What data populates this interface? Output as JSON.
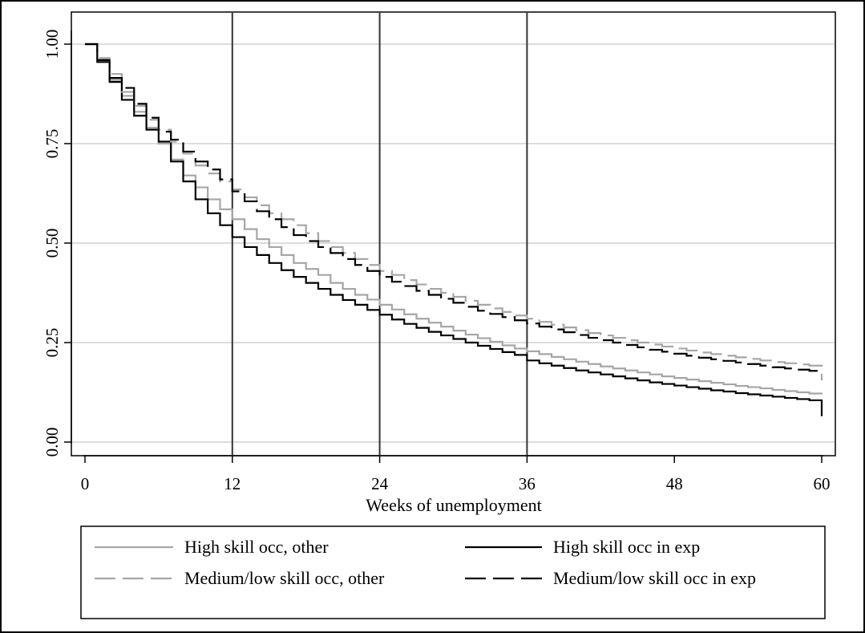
{
  "chart_data": {
    "type": "line",
    "subtype": "step",
    "xlabel": "Weeks of unemployment",
    "ylabel": "",
    "xlim": [
      0,
      60
    ],
    "ylim": [
      0,
      1
    ],
    "x_ticks": [
      0,
      12,
      24,
      36,
      48,
      60
    ],
    "x_tick_labels": [
      "0",
      "12",
      "24",
      "36",
      "48",
      "60"
    ],
    "y_ticks": [
      0,
      0.25,
      0.5,
      0.75,
      1.0
    ],
    "y_tick_labels": [
      "0.00",
      "0.25",
      "0.50",
      "0.75",
      "1.00"
    ],
    "grid": "horizontal",
    "reference_lines_x": [
      12,
      24,
      36
    ],
    "legend_position": "bottom",
    "series": [
      {
        "name": "High skill occ, other",
        "color": "#a6a6a6",
        "dash": "solid",
        "x": [
          0,
          1,
          2,
          3,
          4,
          5,
          6,
          7,
          8,
          9,
          10,
          11,
          12,
          13,
          14,
          15,
          16,
          17,
          18,
          19,
          20,
          21,
          22,
          23,
          24,
          25,
          26,
          27,
          28,
          29,
          30,
          31,
          32,
          33,
          34,
          35,
          36,
          37,
          38,
          39,
          40,
          41,
          42,
          43,
          44,
          45,
          46,
          47,
          48,
          49,
          50,
          51,
          52,
          53,
          54,
          55,
          56,
          57,
          58,
          59,
          60
        ],
        "y": [
          1.0,
          0.96,
          0.91,
          0.87,
          0.83,
          0.79,
          0.75,
          0.71,
          0.67,
          0.64,
          0.61,
          0.585,
          0.56,
          0.535,
          0.51,
          0.49,
          0.47,
          0.45,
          0.435,
          0.42,
          0.4,
          0.385,
          0.37,
          0.358,
          0.345,
          0.333,
          0.321,
          0.31,
          0.3,
          0.29,
          0.28,
          0.27,
          0.261,
          0.252,
          0.243,
          0.235,
          0.228,
          0.221,
          0.214,
          0.208,
          0.202,
          0.196,
          0.19,
          0.185,
          0.18,
          0.175,
          0.17,
          0.165,
          0.161,
          0.157,
          0.153,
          0.149,
          0.145,
          0.141,
          0.138,
          0.135,
          0.131,
          0.128,
          0.125,
          0.122,
          0.12
        ]
      },
      {
        "name": "High skill occ in exp",
        "color": "#000000",
        "dash": "solid",
        "x": [
          0,
          1,
          2,
          3,
          4,
          5,
          6,
          7,
          8,
          9,
          10,
          11,
          12,
          13,
          14,
          15,
          16,
          17,
          18,
          19,
          20,
          21,
          22,
          23,
          24,
          25,
          26,
          27,
          28,
          29,
          30,
          31,
          32,
          33,
          34,
          35,
          36,
          37,
          38,
          39,
          40,
          41,
          42,
          43,
          44,
          45,
          46,
          47,
          48,
          49,
          50,
          51,
          52,
          53,
          54,
          55,
          56,
          57,
          58,
          59,
          60
        ],
        "y": [
          1.0,
          0.955,
          0.905,
          0.86,
          0.82,
          0.785,
          0.755,
          0.705,
          0.655,
          0.61,
          0.575,
          0.545,
          0.515,
          0.49,
          0.47,
          0.45,
          0.432,
          0.415,
          0.4,
          0.385,
          0.37,
          0.357,
          0.345,
          0.332,
          0.32,
          0.308,
          0.297,
          0.287,
          0.277,
          0.268,
          0.259,
          0.25,
          0.242,
          0.234,
          0.226,
          0.219,
          0.205,
          0.198,
          0.192,
          0.186,
          0.18,
          0.175,
          0.17,
          0.165,
          0.16,
          0.155,
          0.15,
          0.146,
          0.142,
          0.138,
          0.134,
          0.13,
          0.127,
          0.123,
          0.12,
          0.117,
          0.114,
          0.111,
          0.108,
          0.105,
          0.065
        ]
      },
      {
        "name": "Medium/low skill occ, other",
        "color": "#a6a6a6",
        "dash": "dashed",
        "x": [
          0,
          1,
          2,
          3,
          4,
          5,
          6,
          7,
          8,
          9,
          10,
          11,
          12,
          13,
          14,
          15,
          16,
          17,
          18,
          19,
          20,
          21,
          22,
          23,
          24,
          25,
          26,
          27,
          28,
          29,
          30,
          31,
          32,
          33,
          34,
          35,
          36,
          37,
          38,
          39,
          40,
          41,
          42,
          43,
          44,
          45,
          46,
          47,
          48,
          49,
          50,
          51,
          52,
          53,
          54,
          55,
          56,
          57,
          58,
          59,
          60
        ],
        "y": [
          1.0,
          0.965,
          0.925,
          0.88,
          0.845,
          0.81,
          0.785,
          0.755,
          0.725,
          0.695,
          0.675,
          0.655,
          0.635,
          0.615,
          0.595,
          0.575,
          0.56,
          0.545,
          0.525,
          0.505,
          0.49,
          0.475,
          0.46,
          0.445,
          0.43,
          0.42,
          0.407,
          0.396,
          0.385,
          0.375,
          0.365,
          0.355,
          0.345,
          0.336,
          0.327,
          0.318,
          0.31,
          0.302,
          0.295,
          0.288,
          0.281,
          0.274,
          0.268,
          0.262,
          0.256,
          0.25,
          0.245,
          0.24,
          0.235,
          0.23,
          0.225,
          0.221,
          0.217,
          0.213,
          0.209,
          0.205,
          0.201,
          0.198,
          0.195,
          0.192,
          0.155
        ]
      },
      {
        "name": "Medium/low skill occ in exp",
        "color": "#000000",
        "dash": "dashed",
        "x": [
          0,
          1,
          2,
          3,
          4,
          5,
          6,
          7,
          8,
          9,
          10,
          11,
          12,
          13,
          14,
          15,
          16,
          17,
          18,
          19,
          20,
          21,
          22,
          23,
          24,
          25,
          26,
          27,
          28,
          29,
          30,
          31,
          32,
          33,
          34,
          35,
          36,
          37,
          38,
          39,
          40,
          41,
          42,
          43,
          44,
          45,
          46,
          47,
          48,
          49,
          50,
          51,
          52,
          53,
          54,
          55,
          56,
          57,
          58,
          59,
          60
        ],
        "y": [
          1.0,
          0.96,
          0.915,
          0.89,
          0.85,
          0.815,
          0.78,
          0.76,
          0.73,
          0.705,
          0.685,
          0.66,
          0.63,
          0.605,
          0.58,
          0.56,
          0.54,
          0.52,
          0.505,
          0.49,
          0.475,
          0.46,
          0.445,
          0.43,
          0.415,
          0.403,
          0.392,
          0.38,
          0.37,
          0.36,
          0.35,
          0.34,
          0.33,
          0.322,
          0.314,
          0.306,
          0.298,
          0.29,
          0.283,
          0.276,
          0.269,
          0.262,
          0.256,
          0.25,
          0.244,
          0.238,
          0.232,
          0.227,
          0.222,
          0.217,
          0.212,
          0.208,
          0.204,
          0.2,
          0.196,
          0.192,
          0.188,
          0.185,
          0.182,
          0.179,
          0.175
        ]
      }
    ]
  }
}
